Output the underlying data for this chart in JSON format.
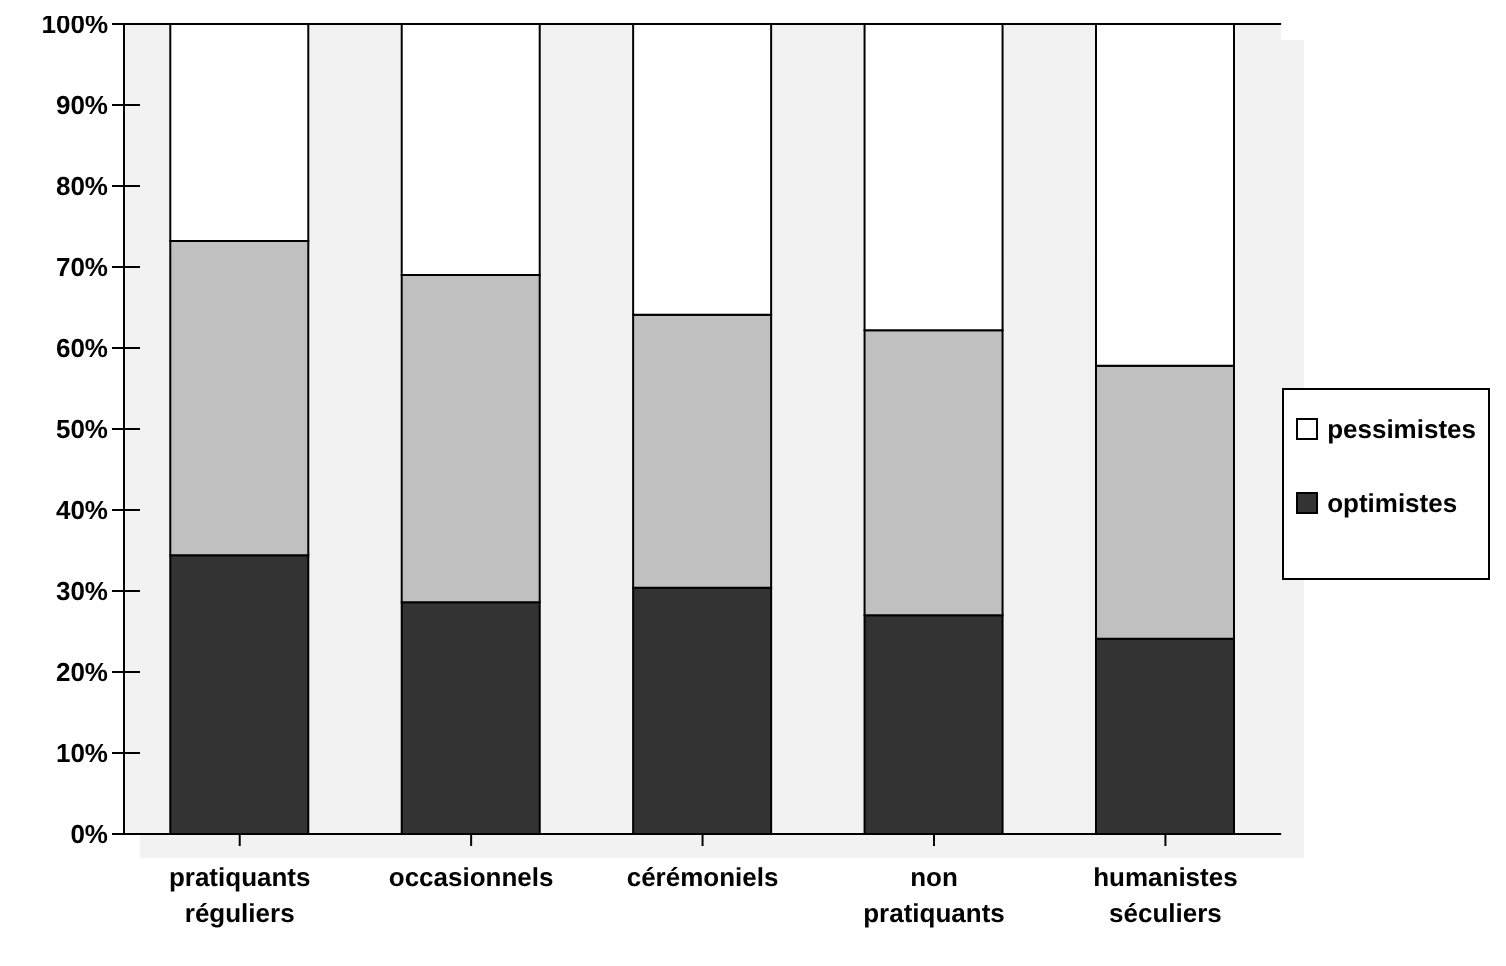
{
  "chart_data": {
    "type": "bar",
    "stacked": true,
    "categories": [
      "pratiquants réguliers",
      "occasionnels",
      "cérémoniels",
      "non pratiquants",
      "humanistes séculiers"
    ],
    "series": [
      {
        "name": "optimistes",
        "color": "#333333",
        "values": [
          34.4,
          28.6,
          30.4,
          27.0,
          24.1
        ]
      },
      {
        "color": "#c0c0c0",
        "values": [
          38.8,
          40.4,
          33.7,
          35.2,
          33.7
        ]
      },
      {
        "name": "pessimistes",
        "color": "#ffffff",
        "values": [
          26.8,
          31.0,
          35.9,
          37.8,
          42.2
        ]
      }
    ],
    "ylim": [
      0,
      100
    ],
    "yticks": [
      {
        "value": 0,
        "label": "0%"
      },
      {
        "value": 10,
        "label": "10%"
      },
      {
        "value": 20,
        "label": "20%"
      },
      {
        "value": 30,
        "label": "30%"
      },
      {
        "value": 40,
        "label": "40%"
      },
      {
        "value": 50,
        "label": "50%"
      },
      {
        "value": 60,
        "label": "60%"
      },
      {
        "value": 70,
        "label": "70%"
      },
      {
        "value": 80,
        "label": "80%"
      },
      {
        "value": 90,
        "label": "90%"
      },
      {
        "value": 100,
        "label": "100%"
      }
    ],
    "grid": "y",
    "legend": "right"
  }
}
